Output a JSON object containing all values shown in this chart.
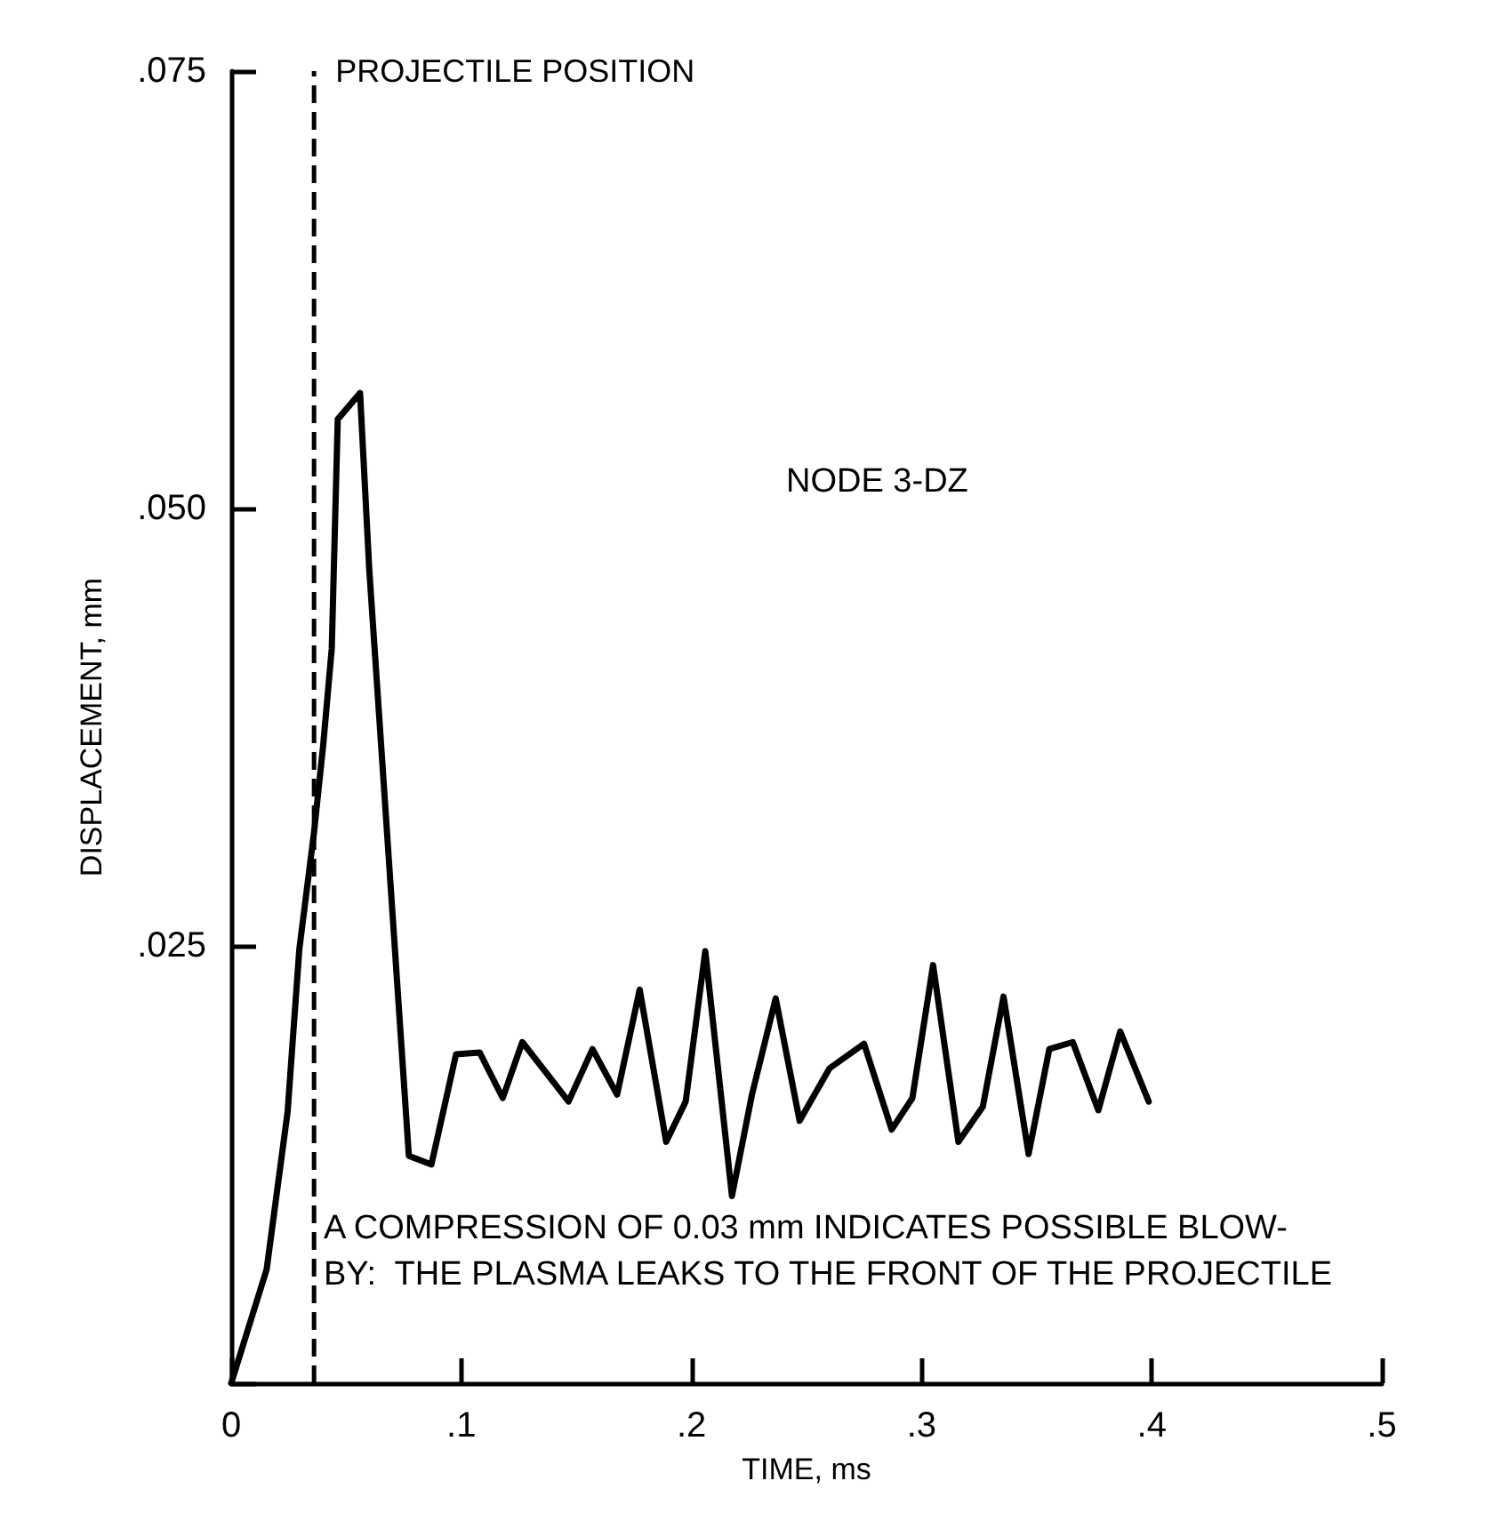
{
  "chart_data": {
    "type": "line",
    "xlabel": "TIME, ms",
    "ylabel": "DISPLACEMENT, mm",
    "annotations": [
      "NODE 3-DZ",
      "A COMPRESSION OF 0.03 mm INDICATES POSSIBLE BLOW-\nBY:  THE PLASMA LEAKS TO THE FRONT OF THE PROJECTILE"
    ],
    "series": [
      {
        "color": "#000000",
        "x": [
          0,
          0.0154,
          0.0245,
          0.0296,
          0.036,
          0.04,
          0.0437,
          0.0463,
          0.056,
          0.06,
          0.0772,
          0.087,
          0.0977,
          0.108,
          0.118,
          0.1265,
          0.1466,
          0.157,
          0.1677,
          0.1775,
          0.189,
          0.1975,
          0.206,
          0.2176,
          0.2263,
          0.2366,
          0.247,
          0.26,
          0.275,
          0.287,
          0.296,
          0.305,
          0.316,
          0.3266,
          0.3356,
          0.3465,
          0.3555,
          0.3657,
          0.3768,
          0.3863,
          0.3987
        ],
        "values": [
          0,
          0.0065,
          0.0155,
          0.0248,
          0.0315,
          0.0365,
          0.042,
          0.0551,
          0.0566,
          0.0465,
          0.013,
          0.0125,
          0.0188,
          0.0189,
          0.0163,
          0.0195,
          0.0161,
          0.0191,
          0.0165,
          0.0225,
          0.0138,
          0.0161,
          0.0247,
          0.0107,
          0.0165,
          0.022,
          0.015,
          0.018,
          0.0194,
          0.0145,
          0.0163,
          0.0239,
          0.0138,
          0.0158,
          0.0221,
          0.0131,
          0.0191,
          0.0195,
          0.0156,
          0.0201,
          0.0161
        ]
      }
    ],
    "ref_lines": [
      {
        "axis": "x",
        "value": 0.036,
        "label": "PROJECTILE POSITION",
        "color": "#000000",
        "line_style": "dashed"
      }
    ],
    "xlim": [
      0,
      0.5
    ],
    "xticks": [
      {
        "value": 0,
        "label": "0"
      },
      {
        "value": 0.1,
        "label": ".1"
      },
      {
        "value": 0.2,
        "label": ".2"
      },
      {
        "value": 0.3,
        "label": ".3"
      },
      {
        "value": 0.4,
        "label": ".4"
      },
      {
        "value": 0.5,
        "label": ".5"
      }
    ],
    "ylim": [
      0,
      0.075
    ],
    "yticks": [
      {
        "value": 0,
        "label": null
      },
      {
        "value": 0.025,
        "label": ".025"
      },
      {
        "value": 0.05,
        "label": ".050"
      },
      {
        "value": 0.075,
        "label": ".075"
      }
    ],
    "grid": false,
    "marker": "none",
    "line_style": "solid"
  }
}
